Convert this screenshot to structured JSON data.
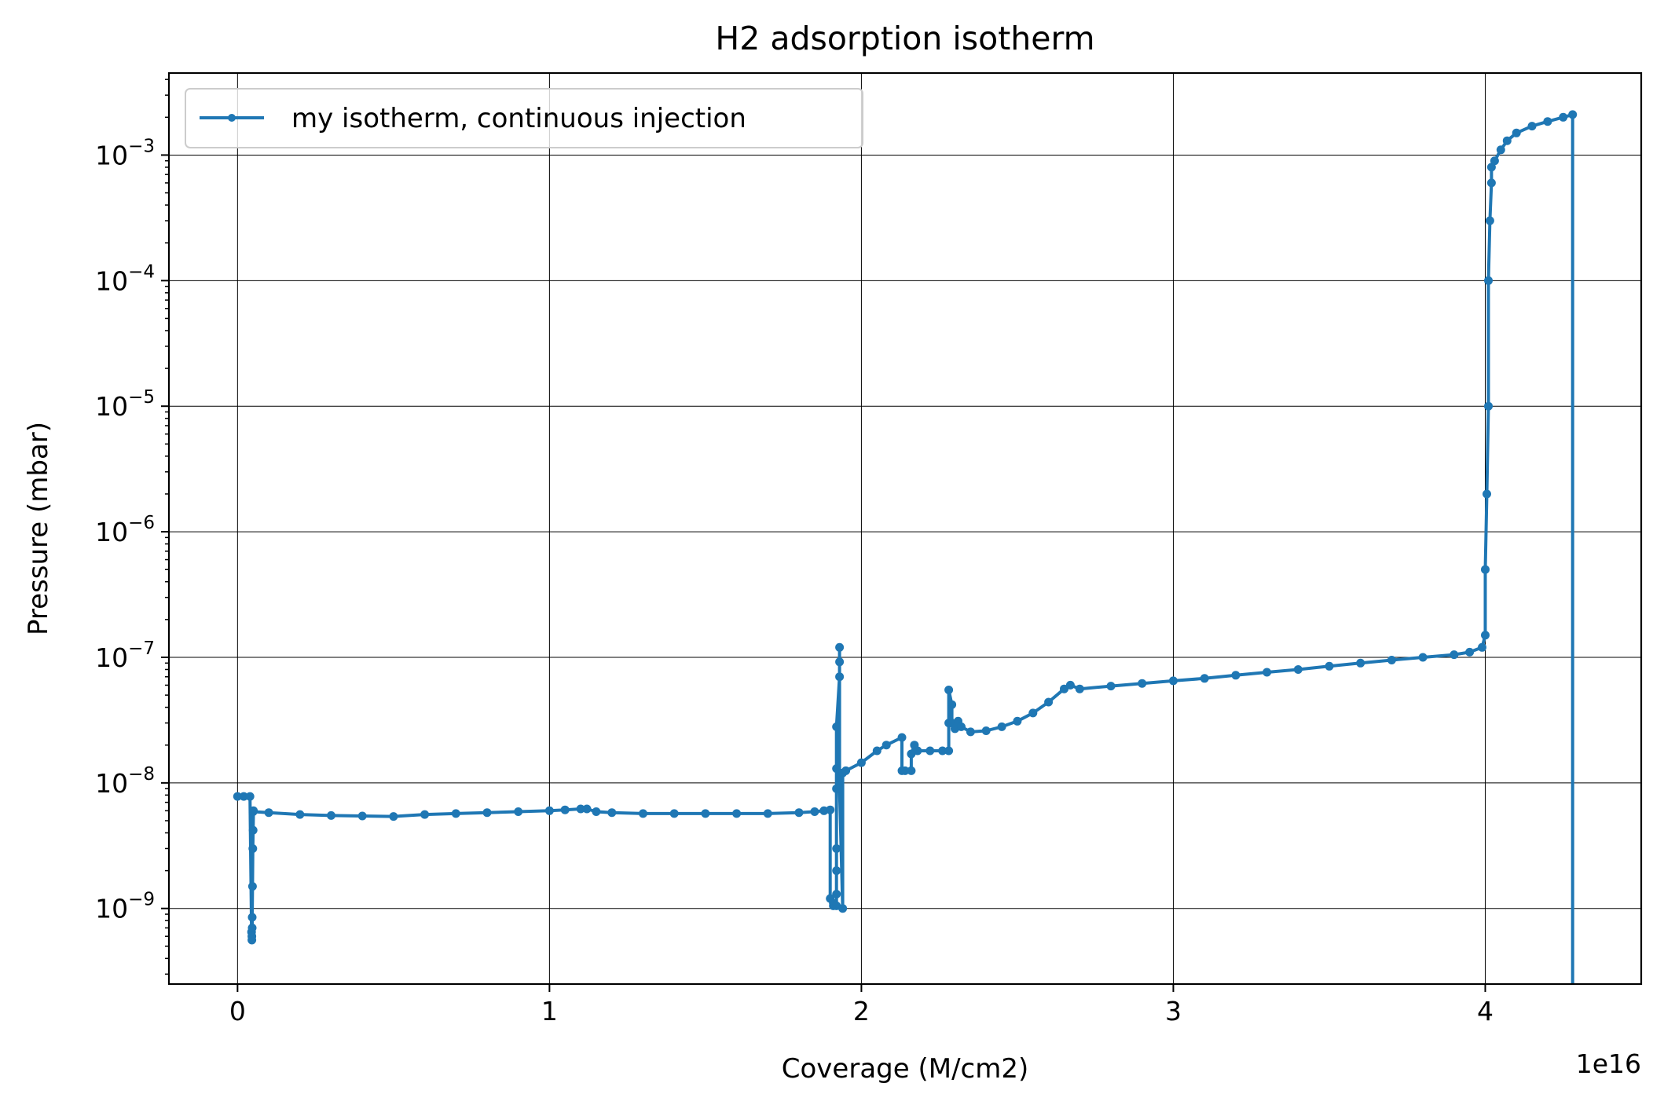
{
  "chart_data": {
    "type": "line",
    "title": "H2 adsorption isotherm",
    "xlabel": "Coverage (M/cm2)",
    "ylabel": "Pressure (mbar)",
    "x_offset_label": "1e16",
    "x_scale_factor": 1e+16,
    "xlim": [
      -2200000000000000.0,
      4.5e+16
    ],
    "ylim": [
      2.5e-10,
      0.0045
    ],
    "yscale": "log",
    "grid": true,
    "legend_position": "upper left",
    "x_ticks": [
      {
        "value": 0,
        "label": "0"
      },
      {
        "value": 1e+16,
        "label": "1"
      },
      {
        "value": 2e+16,
        "label": "2"
      },
      {
        "value": 3e+16,
        "label": "3"
      },
      {
        "value": 4e+16,
        "label": "4"
      }
    ],
    "y_ticks": [
      {
        "value": 1e-09,
        "base": "10",
        "exp": "−9"
      },
      {
        "value": 1e-08,
        "base": "10",
        "exp": "−8"
      },
      {
        "value": 1e-07,
        "base": "10",
        "exp": "−7"
      },
      {
        "value": 1e-06,
        "base": "10",
        "exp": "−6"
      },
      {
        "value": 1e-05,
        "base": "10",
        "exp": "−5"
      },
      {
        "value": 0.0001,
        "base": "10",
        "exp": "−4"
      },
      {
        "value": 0.001,
        "base": "10",
        "exp": "−3"
      }
    ],
    "series": [
      {
        "name": "my isotherm, continuous injection",
        "color": "#1f77b4",
        "marker": "dot",
        "x": [
          0,
          200000000000000.0,
          400000000000000.0,
          450000000000000.0,
          460000000000000.0,
          460000000000000.0,
          470000000000000.0,
          470000000000000.0,
          480000000000000.0,
          490000000000000.0,
          500000000000000.0,
          510000000000000.0,
          500000000000000.0,
          1000000000000000.0,
          2000000000000000.0,
          3000000000000000.0,
          4000000000000000.0,
          5000000000000000.0,
          6000000000000000.0,
          7000000000000000.0,
          8000000000000000.0,
          9000000000000000.0,
          1e+16,
          1.05e+16,
          1.1e+16,
          1.12e+16,
          1.15e+16,
          1.2e+16,
          1.3e+16,
          1.4e+16,
          1.5e+16,
          1.6e+16,
          1.7e+16,
          1.8e+16,
          1.85e+16,
          1.88e+16,
          1.9e+16,
          1.9e+16,
          1.91e+16,
          1.91e+16,
          1.92e+16,
          1.92e+16,
          1.92e+16,
          1.92e+16,
          1.92e+16,
          1.92e+16,
          1.92e+16,
          1.93e+16,
          1.93e+16,
          1.93e+16,
          1.93e+16,
          1.94e+16,
          1.94e+16,
          1.95e+16,
          2e+16,
          2.05e+16,
          2.08e+16,
          2.13e+16,
          2.13e+16,
          2.14e+16,
          2.16e+16,
          2.16e+16,
          2.17e+16,
          2.18e+16,
          2.22e+16,
          2.26e+16,
          2.28e+16,
          2.28e+16,
          2.28e+16,
          2.29e+16,
          2.29e+16,
          2.3e+16,
          2.31e+16,
          2.32e+16,
          2.35e+16,
          2.4e+16,
          2.45e+16,
          2.5e+16,
          2.55e+16,
          2.6e+16,
          2.65e+16,
          2.67e+16,
          2.7e+16,
          2.8e+16,
          2.9e+16,
          3e+16,
          3.1e+16,
          3.2e+16,
          3.3e+16,
          3.4e+16,
          3.5e+16,
          3.6e+16,
          3.7e+16,
          3.8e+16,
          3.9e+16,
          3.95e+16,
          3.99e+16,
          4e+16,
          4e+16,
          4.005e+16,
          4.01e+16,
          4.01e+16,
          4.015e+16,
          4.02e+16,
          4.02e+16,
          4.03e+16,
          4.05e+16,
          4.07e+16,
          4.1e+16,
          4.15e+16,
          4.2e+16,
          4.25e+16,
          4.28e+16,
          4.28e+16
        ],
        "y": [
          7.8e-09,
          7.8e-09,
          7.8e-09,
          6.5e-10,
          6e-10,
          5.6e-10,
          7e-10,
          8.5e-10,
          1.5e-09,
          3e-09,
          4.2e-09,
          6e-09,
          5.9e-09,
          5.8e-09,
          5.6e-09,
          5.5e-09,
          5.45e-09,
          5.4e-09,
          5.6e-09,
          5.7e-09,
          5.8e-09,
          5.9e-09,
          6e-09,
          6.1e-09,
          6.2e-09,
          6.2e-09,
          5.9e-09,
          5.8e-09,
          5.7e-09,
          5.7e-09,
          5.7e-09,
          5.7e-09,
          5.7e-09,
          5.8e-09,
          5.9e-09,
          6e-09,
          6.1e-09,
          1.2e-09,
          1.1e-09,
          1.05e-09,
          1.05e-09,
          1.3e-09,
          2e-09,
          3e-09,
          9e-09,
          1.3e-08,
          2.8e-08,
          7e-08,
          9.2e-08,
          1.2e-07,
          9e-09,
          1e-09,
          1.2e-08,
          1.25e-08,
          1.45e-08,
          1.8e-08,
          2e-08,
          2.3e-08,
          1.25e-08,
          1.25e-08,
          1.25e-08,
          1.7e-08,
          2e-08,
          1.8e-08,
          1.8e-08,
          1.8e-08,
          1.8e-08,
          3e-08,
          5.5e-08,
          4.2e-08,
          3e-08,
          2.7e-08,
          3.1e-08,
          2.8e-08,
          2.55e-08,
          2.6e-08,
          2.8e-08,
          3.1e-08,
          3.6e-08,
          4.4e-08,
          5.6e-08,
          6e-08,
          5.6e-08,
          5.9e-08,
          6.2e-08,
          6.5e-08,
          6.8e-08,
          7.2e-08,
          7.6e-08,
          8e-08,
          8.5e-08,
          9e-08,
          9.5e-08,
          1e-07,
          1.05e-07,
          1.1e-07,
          1.2e-07,
          1.5e-07,
          5e-07,
          2e-06,
          1e-05,
          0.0001,
          0.0003,
          0.0006,
          0.0008,
          0.0009,
          0.0011,
          0.0013,
          0.0015,
          0.0017,
          0.00185,
          0.002,
          0.0021,
          2.5e-10
        ]
      }
    ]
  }
}
